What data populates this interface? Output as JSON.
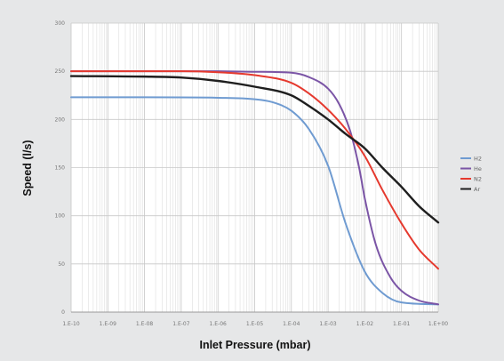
{
  "chart_data": {
    "type": "line",
    "title": "",
    "xlabel": "Inlet Pressure (mbar)",
    "ylabel": "Speed (l/s)",
    "x_scale": "log",
    "xlim": [
      1e-10,
      1
    ],
    "ylim": [
      0,
      300
    ],
    "yticks": [
      0,
      50,
      100,
      150,
      200,
      250,
      300
    ],
    "xtick_labels": [
      "1.E-10",
      "1.E-09",
      "1.E-08",
      "1.E-07",
      "1.E-06",
      "1.E-05",
      "1.E-04",
      "1.E-03",
      "1.E-02",
      "1.E-01",
      "1.E+00"
    ],
    "grid": true,
    "legend_position": "right",
    "series": [
      {
        "name": "H2",
        "color": "#6f9bd1",
        "points": [
          [
            1e-10,
            223
          ],
          [
            1e-08,
            223
          ],
          [
            1e-06,
            222.5
          ],
          [
            1e-05,
            221
          ],
          [
            3e-05,
            218
          ],
          [
            0.0001,
            209
          ],
          [
            0.0003,
            190
          ],
          [
            0.001,
            152
          ],
          [
            0.003,
            92
          ],
          [
            0.01,
            42
          ],
          [
            0.03,
            20
          ],
          [
            0.1,
            10
          ],
          [
            1,
            8
          ]
        ]
      },
      {
        "name": "He",
        "color": "#7b55a6",
        "points": [
          [
            1e-10,
            250
          ],
          [
            1e-06,
            250
          ],
          [
            1e-05,
            249.5
          ],
          [
            0.0001,
            248.5
          ],
          [
            0.0003,
            244
          ],
          [
            0.001,
            232
          ],
          [
            0.002,
            216
          ],
          [
            0.004,
            188
          ],
          [
            0.007,
            150
          ],
          [
            0.01,
            118
          ],
          [
            0.02,
            70
          ],
          [
            0.05,
            36
          ],
          [
            0.1,
            22
          ],
          [
            0.3,
            12
          ],
          [
            1,
            8
          ]
        ]
      },
      {
        "name": "N2",
        "color": "#e5392e",
        "points": [
          [
            1e-10,
            250
          ],
          [
            1e-07,
            250
          ],
          [
            1e-06,
            249
          ],
          [
            1e-05,
            246
          ],
          [
            0.0001,
            238
          ],
          [
            0.0003,
            227
          ],
          [
            0.001,
            210
          ],
          [
            0.003,
            190
          ],
          [
            0.01,
            162
          ],
          [
            0.03,
            127
          ],
          [
            0.1,
            92
          ],
          [
            0.3,
            65
          ],
          [
            1,
            45
          ]
        ]
      },
      {
        "name": "Ar",
        "color": "#1e1e1e",
        "points": [
          [
            1e-10,
            245
          ],
          [
            1e-08,
            244.5
          ],
          [
            1e-07,
            243.5
          ],
          [
            1e-06,
            240
          ],
          [
            1e-05,
            234
          ],
          [
            0.0001,
            225
          ],
          [
            0.0003,
            214
          ],
          [
            0.001,
            200
          ],
          [
            0.003,
            185
          ],
          [
            0.01,
            170
          ],
          [
            0.03,
            150
          ],
          [
            0.1,
            130
          ],
          [
            0.3,
            110
          ],
          [
            1,
            93
          ]
        ]
      }
    ]
  }
}
